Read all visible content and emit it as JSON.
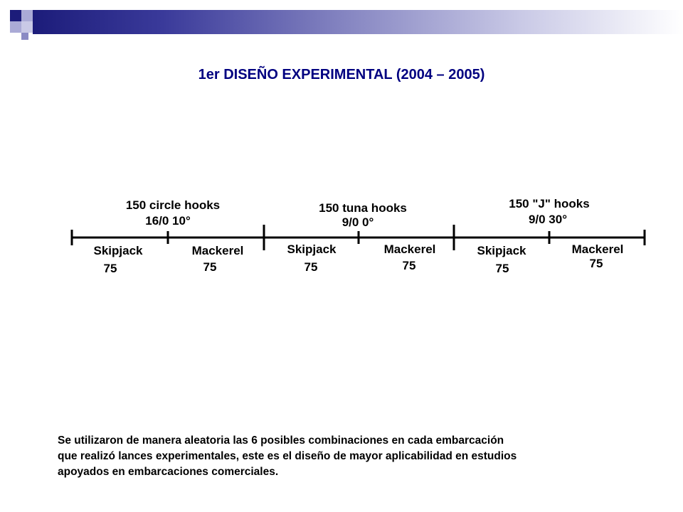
{
  "colors": {
    "navy": "#1c1c7a",
    "periwinkle": "#8a8ac4",
    "title": "#000080",
    "text": "#000000"
  },
  "slide": {
    "title": "1er DISEÑO EXPERIMENTAL (2004 – 2005)",
    "caption_lines": [
      "Se utilizaron de manera aleatoria las 6 posibles combinaciones en cada embarcación",
      "que realizó lances experimentales, este es el diseño de mayor aplicabilidad en estudios",
      "apoyados en embarcaciones comerciales."
    ]
  },
  "diagram": {
    "groups": [
      {
        "label_line1": "150 circle hooks",
        "label_line2": "16/0  10°"
      },
      {
        "label_line1": "150 tuna hooks",
        "label_line2": "9/0  0°"
      },
      {
        "label_line1": "150 \"J\" hooks",
        "label_line2": "9/0  30°"
      }
    ],
    "segments": [
      {
        "species": "Skipjack",
        "count": "75"
      },
      {
        "species": "Mackerel",
        "count": "75"
      },
      {
        "species": "Skipjack",
        "count": "75"
      },
      {
        "species": "Mackerel",
        "count": "75"
      },
      {
        "species": "Skipjack",
        "count": "75"
      },
      {
        "species": "Mackerel",
        "count": "75"
      }
    ]
  }
}
